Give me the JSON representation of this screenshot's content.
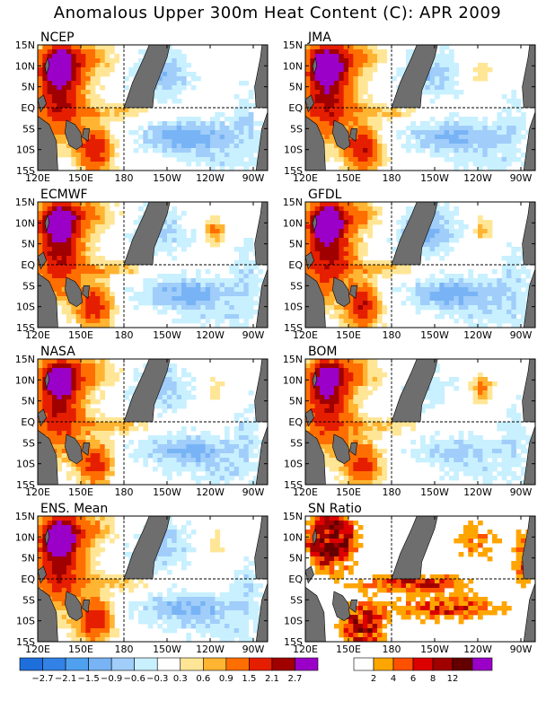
{
  "page": {
    "title": "Anomalous Upper 300m Heat Content (C): APR 2009"
  },
  "chart_data": {
    "type": "heatmap",
    "title": "Anomalous Upper 300m Heat Content (C): APR 2009",
    "x_ticks": [
      "120E",
      "150E",
      "180",
      "150W",
      "120W",
      "90W"
    ],
    "y_ticks": [
      "15N",
      "10N",
      "5N",
      "EQ",
      "5S",
      "10S",
      "15S"
    ],
    "lon_range": [
      120,
      280
    ],
    "lat_range": [
      -15,
      15
    ],
    "reference_lines": [
      "EQ",
      "180"
    ],
    "panels": [
      {
        "name": "NCEP",
        "kind": "anomaly",
        "warm_west": 2.3,
        "warm_nw": 2.8,
        "warm_sw": 2.0,
        "cold_north": -0.9,
        "cold_south": -1.2,
        "east_ne": 0.3,
        "east_se": -0.5
      },
      {
        "name": "JMA",
        "kind": "anomaly",
        "warm_west": 2.4,
        "warm_nw": 2.8,
        "warm_sw": 2.2,
        "cold_north": -0.8,
        "cold_south": -1.0,
        "east_ne": 0.5,
        "east_se": -0.4
      },
      {
        "name": "ECMWF",
        "kind": "anomaly",
        "warm_west": 2.2,
        "warm_nw": 2.8,
        "warm_sw": 1.9,
        "cold_north": -0.7,
        "cold_south": -1.1,
        "east_ne": 1.0,
        "east_se": -0.5
      },
      {
        "name": "GFDL",
        "kind": "anomaly",
        "warm_west": 2.3,
        "warm_nw": 2.8,
        "warm_sw": 2.0,
        "cold_north": -1.0,
        "cold_south": -1.1,
        "east_ne": 0.8,
        "east_se": -0.5
      },
      {
        "name": "NASA",
        "kind": "anomaly",
        "warm_west": 2.1,
        "warm_nw": 2.4,
        "warm_sw": 1.8,
        "cold_north": -0.8,
        "cold_south": -1.0,
        "east_ne": 0.5,
        "east_se": -0.5
      },
      {
        "name": "BOM",
        "kind": "anomaly",
        "warm_west": 2.0,
        "warm_nw": 2.3,
        "warm_sw": 1.8,
        "cold_north": -0.5,
        "cold_south": -0.7,
        "east_ne": 1.2,
        "east_se": -0.5
      },
      {
        "name": "ENS. Mean",
        "kind": "anomaly",
        "warm_west": 2.2,
        "warm_nw": 2.8,
        "warm_sw": 1.9,
        "cold_north": -0.8,
        "cold_south": -1.0,
        "east_ne": 0.6,
        "east_se": -0.5
      },
      {
        "name": "SN Ratio",
        "kind": "snr"
      }
    ],
    "colorbars": [
      {
        "labels": [
          "-2.7",
          "-2.1",
          "-1.5",
          "-0.9",
          "-0.6",
          "-0.3",
          "0.3",
          "0.6",
          "0.9",
          "1.5",
          "2.1",
          "2.7"
        ],
        "colors": [
          "#1e6edc",
          "#3282e6",
          "#50a0f0",
          "#78b4f5",
          "#a0cdfa",
          "#c8f0ff",
          "#ffffff",
          "#ffe696",
          "#ffb432",
          "#ff6e00",
          "#e61e00",
          "#a00000",
          "#9b00c8"
        ]
      },
      {
        "labels": [
          "2",
          "4",
          "6",
          "8",
          "12"
        ],
        "colors": [
          "#ffffff",
          "#ffa500",
          "#ff5000",
          "#dc0000",
          "#a00000",
          "#640000",
          "#9b00c8"
        ]
      }
    ]
  }
}
